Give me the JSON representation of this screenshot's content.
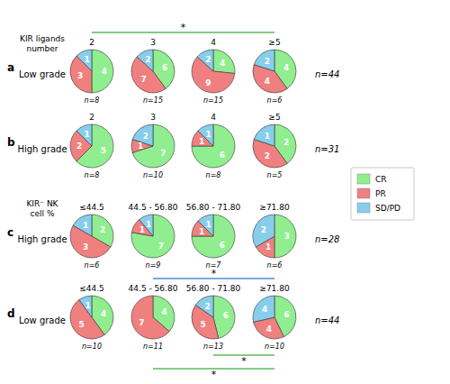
{
  "chart_data": [
    {
      "type": "pie",
      "title": "a",
      "ylabel": "Low grade",
      "xlabel": "KIR ligands\nnumber",
      "categories": [
        "CR",
        "PR",
        "SD/PD"
      ],
      "colors": [
        "#90ee90",
        "#f08080",
        "#87ceeb"
      ],
      "data_labels": true,
      "legend": "right",
      "series": [
        {
          "name": "2",
          "label": "n=8",
          "values": [
            4,
            3,
            1
          ]
        },
        {
          "name": "3",
          "label": "n=15",
          "values": [
            6,
            7,
            2
          ]
        },
        {
          "name": "4",
          "label": "n=15",
          "values": [
            4,
            9,
            2
          ]
        },
        {
          "name": "≥5",
          "label": "n=6",
          "values": [
            4,
            4,
            2
          ]
        }
      ],
      "annotations": [
        {
          "text": "n=44"
        },
        {
          "text": "*",
          "from": 0,
          "to": 3,
          "color": "#5cb85c",
          "position": "above"
        }
      ]
    },
    {
      "type": "pie",
      "title": "b",
      "ylabel": "High grade",
      "categories": [
        "CR",
        "PR",
        "SD/PD"
      ],
      "colors": [
        "#90ee90",
        "#f08080",
        "#87ceeb"
      ],
      "data_labels": true,
      "series": [
        {
          "name": "2",
          "label": "n=8",
          "values": [
            5,
            2,
            1
          ]
        },
        {
          "name": "3",
          "label": "n=10",
          "values": [
            7,
            1,
            2
          ]
        },
        {
          "name": "4",
          "label": "n=8",
          "values": [
            6,
            1,
            1
          ]
        },
        {
          "name": "≥5",
          "label": "n=5",
          "values": [
            2,
            2,
            1
          ]
        }
      ],
      "annotations": [
        {
          "text": "n=31"
        }
      ]
    },
    {
      "type": "pie",
      "title": "c",
      "ylabel": "High grade",
      "xlabel": "KIR⁻ NK\ncell %",
      "categories": [
        "CR",
        "PR",
        "SD/PD"
      ],
      "colors": [
        "#90ee90",
        "#f08080",
        "#87ceeb"
      ],
      "data_labels": true,
      "series": [
        {
          "name": "≤44.5",
          "label": "n=6",
          "values": [
            2,
            3,
            1
          ]
        },
        {
          "name": "44.5 - 56.80",
          "label": "n=9",
          "values": [
            7,
            1,
            1
          ]
        },
        {
          "name": "56.80 - 71.80",
          "label": "n=7",
          "values": [
            6,
            1,
            1
          ]
        },
        {
          "name": "≥71.80",
          "label": "n=6",
          "values": [
            3,
            1,
            2
          ]
        }
      ],
      "annotations": [
        {
          "text": "n=28"
        }
      ]
    },
    {
      "type": "pie",
      "title": "d",
      "ylabel": "Low grade",
      "categories": [
        "CR",
        "PR",
        "SD/PD"
      ],
      "colors": [
        "#90ee90",
        "#f08080",
        "#87ceeb"
      ],
      "data_labels": true,
      "series": [
        {
          "name": "≤44.5",
          "label": "n=10",
          "values": [
            4,
            5,
            1
          ]
        },
        {
          "name": "44.5 - 56.80",
          "label": "n=11",
          "values": [
            4,
            7,
            0
          ]
        },
        {
          "name": "56.80 - 71.80",
          "label": "n=13",
          "values": [
            6,
            5,
            2
          ]
        },
        {
          "name": "≥71.80",
          "label": "n=10",
          "values": [
            6,
            4,
            4
          ]
        }
      ],
      "annotations": [
        {
          "text": "n=44"
        },
        {
          "text": "*",
          "from": 1,
          "to": 3,
          "color": "#4a90d9",
          "position": "above"
        },
        {
          "text": "*",
          "from": 2,
          "to": 3,
          "color": "#5cb85c",
          "position": "below"
        },
        {
          "text": "*",
          "from": 1,
          "to": 3,
          "color": "#5cb85c",
          "position": "below"
        }
      ]
    }
  ]
}
